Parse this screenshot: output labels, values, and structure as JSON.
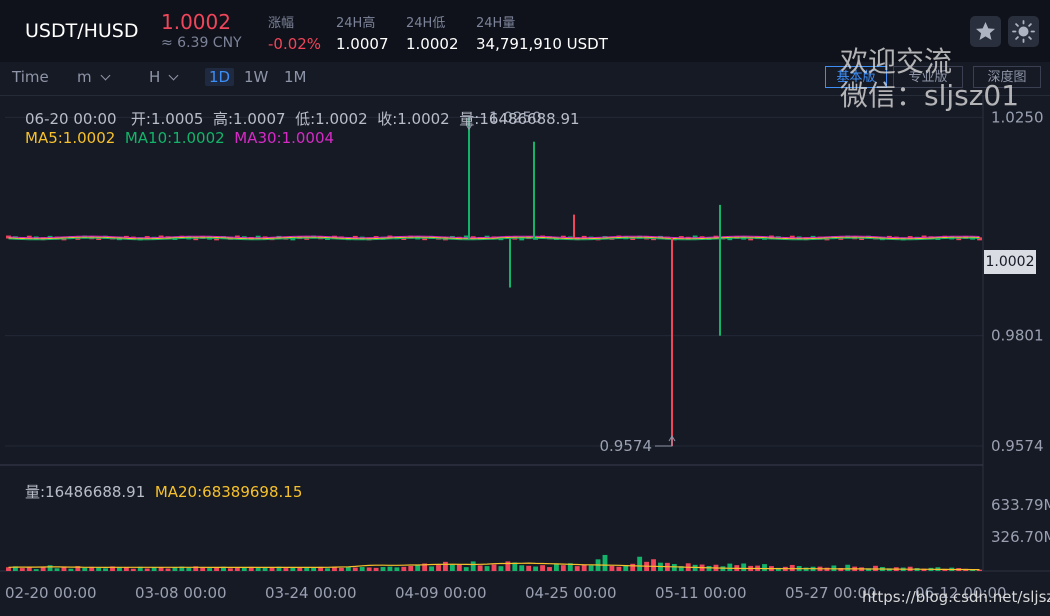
{
  "header": {
    "pair": "USDT/HUSD",
    "price": "1.0002",
    "cny": "≈ 6.39 CNY",
    "change_label": "涨幅",
    "change_value": "-0.02%",
    "high_label": "24H高",
    "high_value": "1.0007",
    "low_label": "24H低",
    "low_value": "1.0002",
    "volume_label": "24H量",
    "volume_value": "34,791,910 USDT",
    "icons": [
      "star-icon",
      "sun-icon"
    ]
  },
  "toolbar": {
    "intervals": [
      "Time",
      "m",
      "H",
      "1D",
      "1W",
      "1M"
    ],
    "active_interval": "1D",
    "views": [
      "基本版",
      "专业版",
      "深度图"
    ],
    "active_view": "基本版"
  },
  "info": {
    "date": "06-20 00:00",
    "open": "开:1.0005",
    "high": "高:1.0007",
    "low": "低:1.0002",
    "close": "收:1.0002",
    "volume": "量:16486688.91",
    "ma5": "MA5:1.0002",
    "ma10": "MA10:1.0002",
    "ma30": "MA30:1.0004"
  },
  "volume_info": {
    "volume": "量:16486688.91",
    "ma20": "MA20:68389698.15"
  },
  "current_price_tag": "1.0002",
  "watermark": [
    "欢迎交流",
    "微信：sljsz01"
  ],
  "footer_url": "https://blog.csdn.net/sljsz",
  "colors": {
    "up": "#13b46a",
    "down": "#f0455a",
    "ma5": "#f6c12b",
    "ma10": "#13b46a",
    "ma30": "#d62ac7",
    "accent": "#3d8ef7"
  },
  "chart_data": [
    {
      "type": "candlestick",
      "x_tick_labels": [
        "02-20 00:00",
        "03-08 00:00",
        "03-24 00:00",
        "04-09 00:00",
        "04-25 00:00",
        "05-11 00:00",
        "05-27 00:00",
        "06-12 00:00"
      ],
      "y_tick_labels": [
        "1.0250",
        "0.9801",
        "0.9574"
      ],
      "ylim": [
        0.9535,
        1.0296
      ],
      "annotations": {
        "max_label": "1.0250",
        "min_label": "0.9574"
      },
      "spikes": [
        {
          "date": "04-10",
          "high": 1.025,
          "low": 1.0,
          "color": "up"
        },
        {
          "date": "04-17",
          "high": 1.02,
          "low": 1.0002,
          "color": "up"
        },
        {
          "date": "04-15",
          "high": 1.0002,
          "low": 0.99,
          "color": "up"
        },
        {
          "date": "04-30",
          "high": 1.005,
          "low": 1.0002,
          "color": "down"
        },
        {
          "date": "05-04",
          "high": 1.0002,
          "low": 0.9574,
          "color": "down"
        },
        {
          "date": "05-09",
          "high": 1.0002,
          "low": 0.9801,
          "color": "up"
        },
        {
          "date": "05-15",
          "high": 1.007,
          "low": 1.0002,
          "color": "up"
        }
      ]
    },
    {
      "type": "bar",
      "y_tick_labels": [
        "633.79M",
        "326.70M"
      ],
      "ylim": [
        0,
        633.79
      ],
      "unit": "M",
      "values": [
        36,
        45,
        28,
        36,
        18,
        42,
        55,
        26,
        38,
        22,
        47,
        30,
        40,
        35,
        26,
        44,
        39,
        36,
        22,
        41,
        24,
        37,
        37,
        24,
        36,
        43,
        31,
        45,
        37,
        28,
        30,
        42,
        26,
        33,
        30,
        40,
        31,
        38,
        33,
        42,
        28,
        36,
        33,
        39,
        31,
        40,
        26,
        36,
        29,
        43,
        33,
        38,
        34,
        30,
        38,
        42,
        35,
        40,
        48,
        58,
        72,
        44,
        57,
        88,
        60,
        62,
        37,
        92,
        54,
        47,
        63,
        46,
        92,
        82,
        55,
        50,
        43,
        56,
        38,
        66,
        56,
        75,
        47,
        64,
        54,
        112,
        154,
        49,
        41,
        58,
        69,
        137,
        88,
        113,
        80,
        78,
        67,
        46,
        74,
        59,
        62,
        48,
        60,
        45,
        71,
        56,
        72,
        49,
        52,
        66,
        47,
        30,
        40,
        58,
        48,
        33,
        41,
        42,
        32,
        53,
        29,
        60,
        42,
        35,
        26,
        50,
        38,
        26,
        36,
        33,
        41,
        28,
        23,
        30,
        36,
        20,
        32,
        28,
        21,
        17,
        13
      ],
      "ma20": [
        36,
        37,
        37,
        37,
        37,
        38,
        39,
        39,
        38,
        37,
        37,
        36,
        36,
        36,
        35,
        36,
        36,
        36,
        36,
        36,
        36,
        36,
        36,
        36,
        36,
        36,
        36,
        36,
        36,
        35,
        35,
        35,
        35,
        35,
        35,
        35,
        35,
        35,
        35,
        35,
        35,
        35,
        35,
        35,
        35,
        35,
        36,
        37,
        38,
        40,
        44,
        50,
        54,
        56,
        56,
        55,
        55,
        56,
        58,
        58,
        60,
        62,
        63,
        64,
        65,
        64,
        63,
        62,
        64,
        66,
        70,
        72,
        72,
        73,
        74,
        76,
        73,
        72,
        70,
        68,
        66,
        64,
        62,
        60,
        60,
        58,
        57,
        56,
        55,
        52,
        50,
        48,
        46,
        45,
        43,
        41,
        40,
        38,
        36,
        35,
        33,
        31,
        29,
        28,
        26,
        25,
        24,
        24,
        24,
        23,
        23,
        23,
        22,
        22,
        22,
        22,
        22,
        21,
        21,
        21,
        20,
        20,
        20,
        20,
        19,
        19,
        19,
        18,
        18,
        17,
        17,
        17,
        16,
        16,
        15,
        15,
        14,
        14,
        14,
        13,
        13
      ]
    }
  ]
}
